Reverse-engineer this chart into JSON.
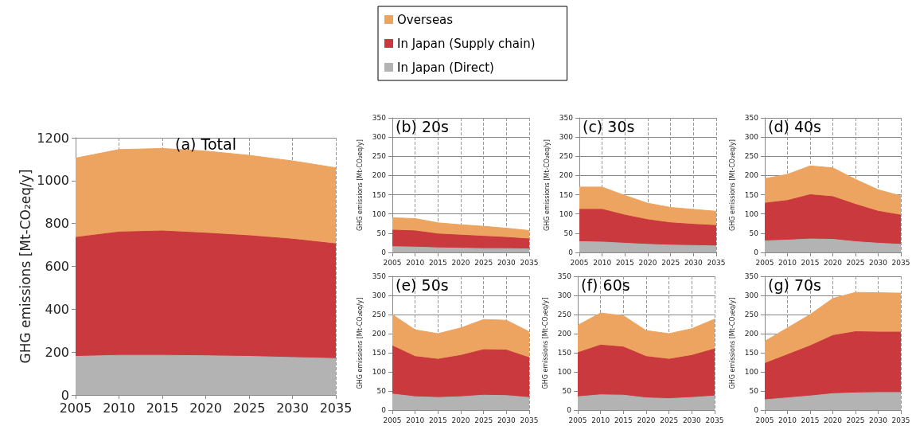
{
  "chart_data": [
    {
      "type": "area",
      "title": "(a) Total",
      "ylabel": "GHG emissions [Mt-CO₂eq/y]",
      "x": [
        2005,
        2010,
        2015,
        2020,
        2025,
        2030,
        2035
      ],
      "xlim": [
        2005,
        2035
      ],
      "xticks": [
        2005,
        2010,
        2015,
        2020,
        2025,
        2030,
        2035
      ],
      "ylim": [
        0,
        1200
      ],
      "yticks": [
        0,
        200,
        400,
        600,
        800,
        1000,
        1200
      ],
      "stacked": true,
      "grid": true,
      "legend": "top",
      "series": [
        {
          "name": "In Japan (Direct)",
          "color": "#b3b3b3",
          "values": [
            180,
            185,
            185,
            183,
            180,
            175,
            170
          ]
        },
        {
          "name": "In Japan (Supply chain)",
          "color": "#c9393d",
          "values": [
            555,
            575,
            580,
            572,
            563,
            552,
            535
          ]
        },
        {
          "name": "Overseas",
          "color": "#eda460",
          "values": [
            370,
            385,
            385,
            383,
            375,
            365,
            355
          ]
        }
      ]
    },
    {
      "type": "area",
      "title": "(b) 20s",
      "ylabel": "GHG emissions [Mt-CO₂eq/y]",
      "x": [
        2005,
        2010,
        2015,
        2020,
        2025,
        2030,
        2035
      ],
      "xlim": [
        2005,
        2035
      ],
      "xticks": [
        2005,
        2010,
        2015,
        2020,
        2025,
        2030,
        2035
      ],
      "ylim": [
        0,
        350
      ],
      "yticks": [
        0,
        50,
        100,
        150,
        200,
        250,
        300,
        350
      ],
      "stacked": true,
      "grid": true,
      "series": [
        {
          "color": "#b3b3b3",
          "values": [
            15,
            14,
            12,
            11,
            10,
            10,
            9
          ]
        },
        {
          "color": "#c9393d",
          "values": [
            43,
            42,
            36,
            34,
            32,
            29,
            26
          ]
        },
        {
          "color": "#eda460",
          "values": [
            32,
            32,
            29,
            27,
            26,
            24,
            22
          ]
        }
      ]
    },
    {
      "type": "area",
      "title": "(c) 30s",
      "ylabel": "GHG emissions [Mt-CO₂eq/y]",
      "x": [
        2005,
        2010,
        2015,
        2020,
        2025,
        2030,
        2035
      ],
      "xlim": [
        2005,
        2035
      ],
      "xticks": [
        2005,
        2010,
        2015,
        2020,
        2025,
        2030,
        2035
      ],
      "ylim": [
        0,
        350
      ],
      "yticks": [
        0,
        50,
        100,
        150,
        200,
        250,
        300,
        350
      ],
      "stacked": true,
      "grid": true,
      "series": [
        {
          "color": "#b3b3b3",
          "values": [
            28,
            27,
            24,
            21,
            19,
            18,
            17
          ]
        },
        {
          "color": "#c9393d",
          "values": [
            84,
            85,
            73,
            64,
            58,
            55,
            53
          ]
        },
        {
          "color": "#eda460",
          "values": [
            58,
            58,
            51,
            43,
            40,
            39,
            37
          ]
        }
      ]
    },
    {
      "type": "area",
      "title": "(d) 40s",
      "ylabel": "GHG emissions [Mt-CO₂eq/y]",
      "x": [
        2005,
        2010,
        2015,
        2020,
        2025,
        2030,
        2035
      ],
      "xlim": [
        2005,
        2035
      ],
      "xticks": [
        2005,
        2010,
        2015,
        2020,
        2025,
        2030,
        2035
      ],
      "ylim": [
        0,
        350
      ],
      "yticks": [
        0,
        50,
        100,
        150,
        200,
        250,
        300,
        350
      ],
      "stacked": true,
      "grid": true,
      "series": [
        {
          "color": "#b3b3b3",
          "values": [
            30,
            32,
            35,
            34,
            28,
            24,
            21
          ]
        },
        {
          "color": "#c9393d",
          "values": [
            98,
            103,
            115,
            111,
            97,
            83,
            76
          ]
        },
        {
          "color": "#eda460",
          "values": [
            64,
            68,
            75,
            75,
            65,
            56,
            50
          ]
        }
      ]
    },
    {
      "type": "area",
      "title": "(e) 50s",
      "ylabel": "GHG emissions [Mt-CO₂eq/y]",
      "x": [
        2005,
        2010,
        2015,
        2020,
        2025,
        2030,
        2035
      ],
      "xlim": [
        2005,
        2035
      ],
      "xticks": [
        2005,
        2010,
        2015,
        2020,
        2025,
        2030,
        2035
      ],
      "ylim": [
        0,
        350
      ],
      "yticks": [
        0,
        50,
        100,
        150,
        200,
        250,
        300,
        350
      ],
      "stacked": true,
      "grid": true,
      "series": [
        {
          "color": "#b3b3b3",
          "values": [
            42,
            35,
            33,
            35,
            39,
            38,
            33
          ]
        },
        {
          "color": "#c9393d",
          "values": [
            126,
            105,
            100,
            108,
            119,
            119,
            104
          ]
        },
        {
          "color": "#eda460",
          "values": [
            82,
            70,
            67,
            72,
            79,
            78,
            68
          ]
        }
      ]
    },
    {
      "type": "area",
      "title": "(f) 60s",
      "ylabel": "GHG emissions [Mt-CO₂eq/y]",
      "x": [
        2005,
        2010,
        2015,
        2020,
        2025,
        2030,
        2035
      ],
      "xlim": [
        2005,
        2035
      ],
      "xticks": [
        2005,
        2010,
        2015,
        2020,
        2025,
        2030,
        2035
      ],
      "ylim": [
        0,
        350
      ],
      "yticks": [
        0,
        50,
        100,
        150,
        200,
        250,
        300,
        350
      ],
      "stacked": true,
      "grid": true,
      "series": [
        {
          "color": "#b3b3b3",
          "values": [
            35,
            40,
            39,
            32,
            30,
            33,
            37
          ]
        },
        {
          "color": "#c9393d",
          "values": [
            115,
            130,
            126,
            108,
            103,
            110,
            123
          ]
        },
        {
          "color": "#eda460",
          "values": [
            72,
            84,
            82,
            68,
            67,
            70,
            78
          ]
        }
      ]
    },
    {
      "type": "area",
      "title": "(g) 70s",
      "ylabel": "GHG emissions [Mt-CO₂eq/y]",
      "x": [
        2005,
        2010,
        2015,
        2020,
        2025,
        2030,
        2035
      ],
      "xlim": [
        2005,
        2035
      ],
      "xticks": [
        2005,
        2010,
        2015,
        2020,
        2025,
        2030,
        2035
      ],
      "ylim": [
        0,
        350
      ],
      "yticks": [
        0,
        50,
        100,
        150,
        200,
        250,
        300,
        350
      ],
      "stacked": true,
      "grid": true,
      "series": [
        {
          "color": "#b3b3b3",
          "values": [
            27,
            32,
            37,
            43,
            45,
            46,
            46
          ]
        },
        {
          "color": "#c9393d",
          "values": [
            95,
            113,
            131,
            152,
            160,
            158,
            158
          ]
        },
        {
          "color": "#eda460",
          "values": [
            58,
            70,
            82,
            97,
            103,
            103,
            102
          ]
        }
      ]
    }
  ]
}
